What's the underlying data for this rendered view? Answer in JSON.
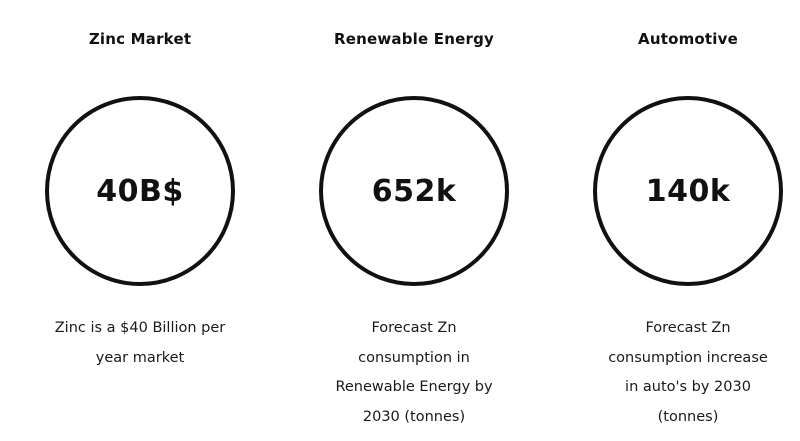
{
  "stats": [
    {
      "title": "Zinc Market",
      "value": "40B$",
      "description_lines": [
        "Zinc is a $40 Billion per",
        "year market"
      ]
    },
    {
      "title": "Renewable Energy",
      "value": "652k",
      "description_lines": [
        "Forecast Zn",
        "consumption in",
        "Renewable Energy by",
        "2030 (tonnes)"
      ]
    },
    {
      "title": "Automotive",
      "value": "140k",
      "description_lines": [
        "Forecast Zn",
        "consumption increase",
        "in auto's by 2030",
        "(tonnes)"
      ]
    }
  ]
}
